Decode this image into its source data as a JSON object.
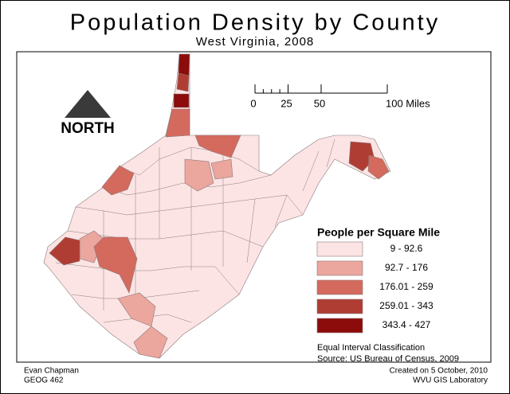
{
  "title": "Population Density by County",
  "subtitle": "West Virginia, 2008",
  "north": "NORTH",
  "scale_bar": {
    "lim": [
      0,
      100
    ],
    "ticks": [
      0,
      25,
      50,
      {
        "value": 100,
        "label": "100 Miles"
      }
    ]
  },
  "legend": {
    "title": "People per Square Mile",
    "classes": [
      {
        "label": "9 - 92.6",
        "color": "#fce4e4"
      },
      {
        "label": "92.7 - 176",
        "color": "#eba69e"
      },
      {
        "label": "176.01 - 259",
        "color": "#d4695e"
      },
      {
        "label": "259.01 - 343",
        "color": "#b03d33"
      },
      {
        "label": "343.4 - 427",
        "color": "#8c0b0b"
      }
    ]
  },
  "notes": [
    "Equal Interval Classification",
    "Source: US Bureau of Census, 2009"
  ],
  "footer": {
    "author": "Evan Chapman",
    "course": "GEOG 462",
    "created": "Created on 5 October, 2010",
    "lab": "WVU GIS Laboratory"
  }
}
